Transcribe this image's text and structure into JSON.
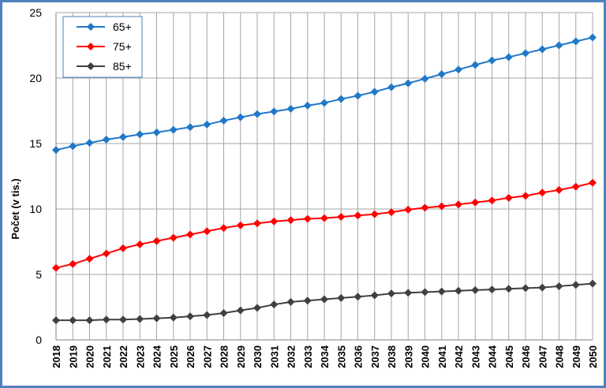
{
  "chart_data": {
    "type": "line",
    "title": "",
    "xlabel": "",
    "ylabel": "Počet (v tis.)",
    "ylim": [
      0,
      25
    ],
    "yticks": [
      0,
      5,
      10,
      15,
      20,
      25
    ],
    "grid": true,
    "legend_position": "top-left",
    "x": [
      "2018",
      "2019",
      "2020",
      "2021",
      "2022",
      "2023",
      "2024",
      "2025",
      "2026",
      "2027",
      "2028",
      "2029",
      "2030",
      "2031",
      "2032",
      "2033",
      "2034",
      "2035",
      "2036",
      "2037",
      "2038",
      "2039",
      "2040",
      "2041",
      "2042",
      "2043",
      "2044",
      "2045",
      "2046",
      "2047",
      "2048",
      "2049",
      "2050"
    ],
    "series": [
      {
        "name": "65+",
        "color": "#1f78c8",
        "marker": "diamond",
        "values": [
          14.5,
          14.8,
          15.05,
          15.3,
          15.5,
          15.7,
          15.85,
          16.05,
          16.25,
          16.45,
          16.75,
          17.0,
          17.25,
          17.45,
          17.65,
          17.9,
          18.1,
          18.4,
          18.65,
          18.95,
          19.3,
          19.6,
          19.95,
          20.3,
          20.65,
          21.0,
          21.35,
          21.6,
          21.9,
          22.2,
          22.5,
          22.8,
          23.1
        ]
      },
      {
        "name": "75+",
        "color": "#ff0000",
        "marker": "diamond",
        "values": [
          5.5,
          5.8,
          6.2,
          6.6,
          7.0,
          7.3,
          7.55,
          7.8,
          8.05,
          8.3,
          8.55,
          8.75,
          8.9,
          9.05,
          9.15,
          9.25,
          9.3,
          9.4,
          9.5,
          9.6,
          9.75,
          9.95,
          10.1,
          10.2,
          10.35,
          10.5,
          10.65,
          10.85,
          11.0,
          11.25,
          11.45,
          11.7,
          12.0
        ]
      },
      {
        "name": "85+",
        "color": "#404040",
        "marker": "diamond",
        "values": [
          1.5,
          1.5,
          1.5,
          1.55,
          1.55,
          1.6,
          1.65,
          1.7,
          1.8,
          1.9,
          2.05,
          2.25,
          2.45,
          2.7,
          2.9,
          3.0,
          3.1,
          3.2,
          3.3,
          3.4,
          3.55,
          3.6,
          3.65,
          3.7,
          3.75,
          3.8,
          3.85,
          3.9,
          3.95,
          4.0,
          4.1,
          4.2,
          4.3
        ]
      }
    ]
  },
  "colors": {
    "frame": "#4f81bd",
    "grid": "#a6a6a6",
    "axis": "#808080"
  }
}
